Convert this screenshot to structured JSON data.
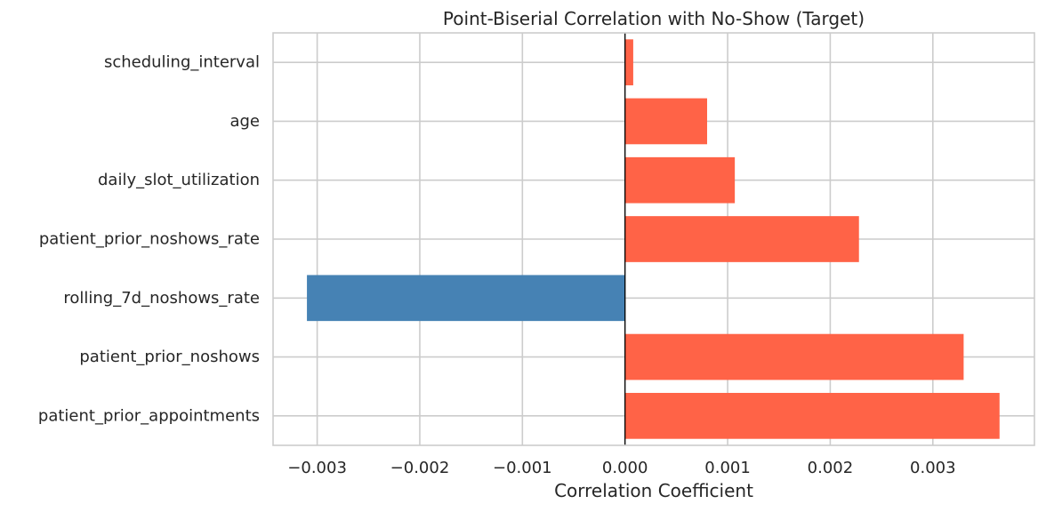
{
  "chart_data": {
    "type": "bar",
    "orientation": "horizontal",
    "title": "Point-Biserial Correlation with No-Show (Target)",
    "xlabel": "Correlation Coefficient",
    "ylabel": "",
    "categories": [
      "patient_prior_appointments",
      "patient_prior_noshows",
      "rolling_7d_noshows_rate",
      "patient_prior_noshows_rate",
      "daily_slot_utilization",
      "age",
      "scheduling_interval"
    ],
    "values": [
      0.00365,
      0.0033,
      -0.0031,
      0.00228,
      0.00107,
      0.0008,
      8e-05
    ],
    "xlim": [
      -0.00343,
      0.00399
    ],
    "xticks": [
      -0.003,
      -0.002,
      -0.001,
      0.0,
      0.001,
      0.002,
      0.003
    ],
    "xtick_labels": [
      "−0.003",
      "−0.002",
      "−0.001",
      "0.000",
      "0.001",
      "0.002",
      "0.003"
    ],
    "grid": true,
    "colors": {
      "positive": "#ff6347",
      "negative": "#4682b4",
      "zero_line": "#000000",
      "grid": "#cccccc",
      "text": "#262626"
    }
  }
}
